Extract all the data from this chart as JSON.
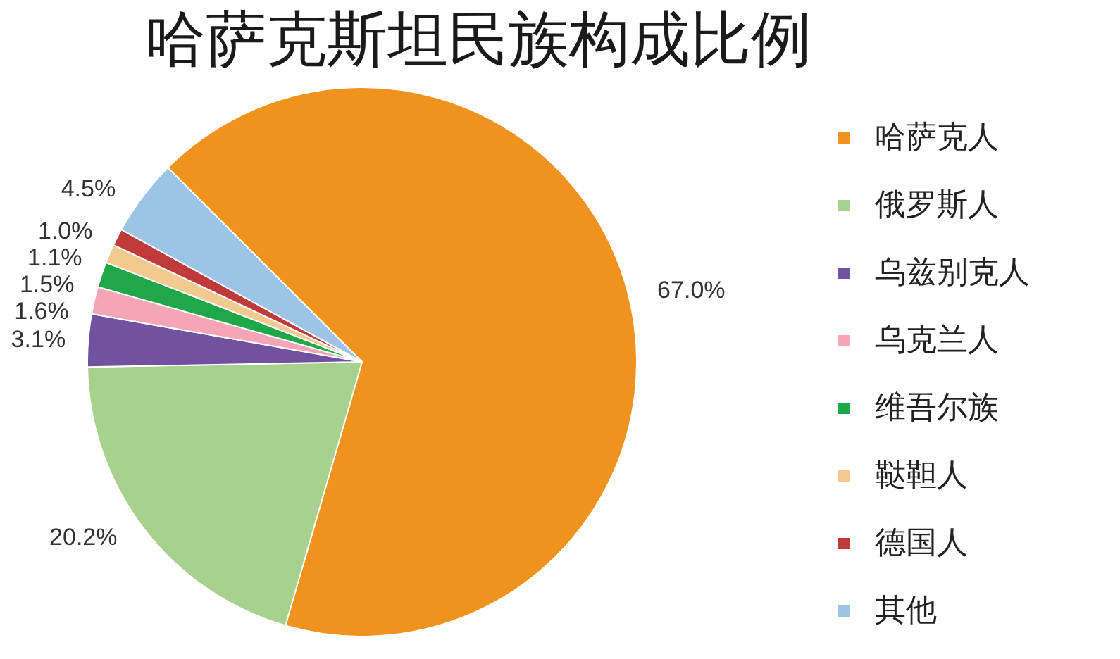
{
  "chart_data": {
    "type": "pie",
    "title": "哈萨克斯坦民族构成比例",
    "categories": [
      "哈萨克人",
      "俄罗斯人",
      "乌兹别克人",
      "乌克兰人",
      "维吾尔族",
      "鞑靼人",
      "德国人",
      "其他"
    ],
    "values": [
      67.0,
      20.2,
      3.1,
      1.6,
      1.5,
      1.1,
      1.0,
      4.5
    ],
    "colors": [
      "#f0921e",
      "#a9d18e",
      "#7052a0",
      "#f4a6b6",
      "#1ea84a",
      "#f2c98f",
      "#c0393b",
      "#9dc3e6"
    ],
    "value_labels": [
      "67.0%",
      "20.2%",
      "3.1%",
      "1.6%",
      "1.5%",
      "1.1%",
      "1.0%",
      "4.5%"
    ],
    "legend": "right"
  }
}
